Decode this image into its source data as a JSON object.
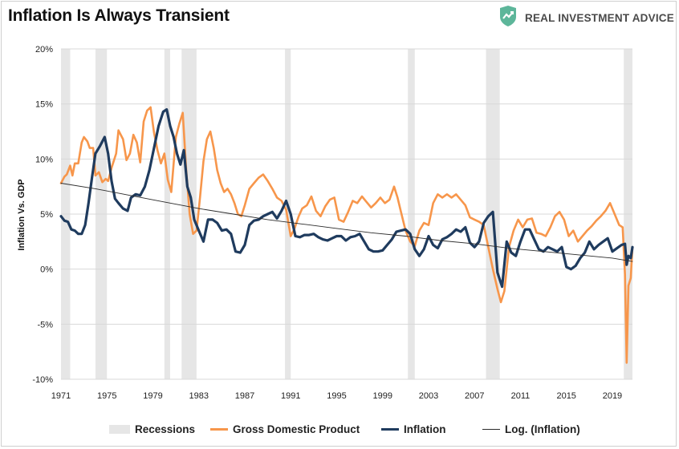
{
  "header": {
    "title": "Inflation Is Always Transient",
    "brand": "REAL INVESTMENT ADVICE"
  },
  "colors": {
    "gdp": "#F7964B",
    "inflation": "#1F3B5E",
    "recession": "#E6E6E6",
    "trend": "#2b2b2b",
    "grid": "#D9D9D9",
    "brand_icon": "#5DB69A"
  },
  "chart_data": {
    "type": "line",
    "ylabel": "Inflation Vs. GDP",
    "ylim": [
      -10,
      20
    ],
    "xlim": [
      1971,
      2020.75
    ],
    "yticks": [
      -10,
      -5,
      0,
      5,
      10,
      15,
      20
    ],
    "ytick_labels": [
      "-10%",
      "-5%",
      "0%",
      "5%",
      "10%",
      "15%",
      "20%"
    ],
    "xticks": [
      1971,
      1975,
      1979,
      1983,
      1987,
      1991,
      1995,
      1999,
      2003,
      2007,
      2011,
      2015,
      2019
    ],
    "grid": "horizontal",
    "legend_position": "bottom",
    "recessions": [
      [
        1971.0,
        1971.8
      ],
      [
        1974.0,
        1975.0
      ],
      [
        1980.0,
        1980.5
      ],
      [
        1981.5,
        1982.8
      ],
      [
        1990.5,
        1991.0
      ],
      [
        2001.2,
        2001.8
      ],
      [
        2008.0,
        2009.2
      ],
      [
        2020.0,
        2020.75
      ]
    ],
    "series": [
      {
        "name": "Gross Domestic Product",
        "x": [
          1971.0,
          1971.3,
          1971.5,
          1971.8,
          1972.0,
          1972.2,
          1972.5,
          1972.8,
          1973.0,
          1973.3,
          1973.5,
          1973.8,
          1974.0,
          1974.3,
          1974.6,
          1974.9,
          1975.1,
          1975.4,
          1975.8,
          1976.0,
          1976.4,
          1976.7,
          1977.0,
          1977.3,
          1977.6,
          1977.9,
          1978.2,
          1978.5,
          1978.8,
          1979.1,
          1979.4,
          1979.7,
          1980.0,
          1980.3,
          1980.6,
          1981.0,
          1981.3,
          1981.6,
          1981.9,
          1982.2,
          1982.5,
          1982.8,
          1983.1,
          1983.4,
          1983.7,
          1984.0,
          1984.3,
          1984.6,
          1984.9,
          1985.2,
          1985.5,
          1985.8,
          1986.1,
          1986.4,
          1986.7,
          1987.0,
          1987.4,
          1987.8,
          1988.2,
          1988.6,
          1989.0,
          1989.4,
          1989.8,
          1990.2,
          1990.6,
          1991.0,
          1991.3,
          1991.7,
          1992.0,
          1992.4,
          1992.8,
          1993.2,
          1993.6,
          1994.0,
          1994.4,
          1994.8,
          1995.2,
          1995.6,
          1996.0,
          1996.4,
          1996.8,
          1997.2,
          1997.6,
          1998.0,
          1998.4,
          1998.8,
          1999.2,
          1999.6,
          2000.0,
          2000.3,
          2000.6,
          2001.0,
          2001.4,
          2001.8,
          2002.2,
          2002.6,
          2003.0,
          2003.4,
          2003.8,
          2004.2,
          2004.6,
          2005.0,
          2005.4,
          2005.8,
          2006.2,
          2006.6,
          2007.0,
          2007.4,
          2007.8,
          2008.2,
          2008.6,
          2009.0,
          2009.3,
          2009.6,
          2010.0,
          2010.4,
          2010.8,
          2011.2,
          2011.6,
          2012.0,
          2012.4,
          2012.8,
          2013.2,
          2013.6,
          2014.0,
          2014.4,
          2014.8,
          2015.2,
          2015.6,
          2016.0,
          2016.4,
          2016.8,
          2017.2,
          2017.6,
          2018.0,
          2018.4,
          2018.8,
          2019.2,
          2019.6,
          2019.9,
          2020.1,
          2020.25,
          2020.4,
          2020.6,
          2020.75
        ],
        "values": [
          7.8,
          8.4,
          8.6,
          9.4,
          8.5,
          9.6,
          9.6,
          11.5,
          12.0,
          11.6,
          11.0,
          11.0,
          8.5,
          8.8,
          7.9,
          8.2,
          8.0,
          9.2,
          10.5,
          12.6,
          11.8,
          9.9,
          10.5,
          12.2,
          11.5,
          9.7,
          13.4,
          14.4,
          14.7,
          12.4,
          10.8,
          9.6,
          10.5,
          8.1,
          7.0,
          12.0,
          13.2,
          14.2,
          9.0,
          5.0,
          3.2,
          3.5,
          6.5,
          9.8,
          11.8,
          12.5,
          11.0,
          9.0,
          7.8,
          7.0,
          7.3,
          6.8,
          6.0,
          5.0,
          4.8,
          5.8,
          7.3,
          7.8,
          8.3,
          8.6,
          8.0,
          7.3,
          6.5,
          6.2,
          5.4,
          3.0,
          3.6,
          4.8,
          5.5,
          5.8,
          6.6,
          5.3,
          4.8,
          5.7,
          6.3,
          6.5,
          4.5,
          4.3,
          5.2,
          6.2,
          6.0,
          6.6,
          6.1,
          5.6,
          6.0,
          6.5,
          6.0,
          6.3,
          7.5,
          6.5,
          5.2,
          3.5,
          2.5,
          2.1,
          3.5,
          4.2,
          4.0,
          6.0,
          6.8,
          6.5,
          6.8,
          6.5,
          6.8,
          6.3,
          5.8,
          4.7,
          4.5,
          4.3,
          4.0,
          2.0,
          0.0,
          -1.8,
          -3.0,
          -2.0,
          2.0,
          3.5,
          4.5,
          3.8,
          4.5,
          4.6,
          3.3,
          3.2,
          3.0,
          3.8,
          4.8,
          5.2,
          4.5,
          3.0,
          3.5,
          2.5,
          3.0,
          3.5,
          3.9,
          4.4,
          4.8,
          5.3,
          6.0,
          5.0,
          4.0,
          3.8,
          -0.5,
          -8.5,
          -1.5,
          -0.8,
          2.0
        ]
      },
      {
        "name": "Inflation",
        "x": [
          1971.0,
          1971.3,
          1971.6,
          1971.9,
          1972.2,
          1972.5,
          1972.8,
          1973.1,
          1973.4,
          1973.7,
          1974.0,
          1974.4,
          1974.8,
          1975.1,
          1975.4,
          1975.7,
          1976.0,
          1976.4,
          1976.8,
          1977.1,
          1977.5,
          1977.9,
          1978.3,
          1978.7,
          1979.1,
          1979.5,
          1979.9,
          1980.2,
          1980.5,
          1980.8,
          1981.1,
          1981.4,
          1981.7,
          1982.0,
          1982.3,
          1982.6,
          1983.0,
          1983.4,
          1983.8,
          1984.2,
          1984.6,
          1985.0,
          1985.4,
          1985.8,
          1986.2,
          1986.6,
          1987.0,
          1987.4,
          1987.8,
          1988.2,
          1988.6,
          1989.0,
          1989.4,
          1989.8,
          1990.2,
          1990.6,
          1991.0,
          1991.4,
          1991.8,
          1992.2,
          1992.6,
          1993.0,
          1993.4,
          1993.8,
          1994.2,
          1994.6,
          1995.0,
          1995.4,
          1995.8,
          1996.2,
          1996.6,
          1997.0,
          1997.4,
          1997.8,
          1998.2,
          1998.6,
          1999.0,
          1999.4,
          1999.8,
          2000.2,
          2000.6,
          2001.0,
          2001.4,
          2001.8,
          2002.2,
          2002.6,
          2003.0,
          2003.4,
          2003.8,
          2004.2,
          2004.6,
          2005.0,
          2005.4,
          2005.8,
          2006.2,
          2006.6,
          2007.0,
          2007.4,
          2007.8,
          2008.2,
          2008.6,
          2009.0,
          2009.4,
          2009.8,
          2010.2,
          2010.6,
          2011.0,
          2011.4,
          2011.8,
          2012.2,
          2012.6,
          2013.0,
          2013.4,
          2013.8,
          2014.2,
          2014.6,
          2015.0,
          2015.4,
          2015.8,
          2016.2,
          2016.6,
          2017.0,
          2017.4,
          2017.8,
          2018.2,
          2018.6,
          2019.0,
          2019.4,
          2019.8,
          2020.1,
          2020.25,
          2020.4,
          2020.6,
          2020.75
        ],
        "values": [
          4.8,
          4.4,
          4.3,
          3.6,
          3.5,
          3.2,
          3.2,
          4.0,
          6.0,
          8.3,
          10.5,
          11.2,
          12.0,
          10.5,
          8.0,
          6.4,
          6.0,
          5.5,
          5.3,
          6.5,
          6.8,
          6.7,
          7.5,
          9.0,
          11.0,
          13.0,
          14.3,
          14.5,
          13.0,
          12.0,
          10.5,
          9.5,
          10.8,
          7.5,
          6.5,
          4.5,
          3.5,
          2.5,
          4.5,
          4.5,
          4.2,
          3.5,
          3.6,
          3.2,
          1.6,
          1.5,
          2.2,
          4.0,
          4.4,
          4.5,
          4.8,
          5.0,
          5.2,
          4.6,
          5.3,
          6.2,
          5.0,
          3.0,
          2.9,
          3.1,
          3.1,
          3.2,
          2.9,
          2.7,
          2.6,
          2.8,
          3.0,
          3.0,
          2.6,
          2.9,
          3.0,
          3.2,
          2.5,
          1.8,
          1.6,
          1.6,
          1.7,
          2.2,
          2.7,
          3.4,
          3.5,
          3.6,
          3.2,
          1.8,
          1.2,
          1.8,
          3.0,
          2.2,
          1.9,
          2.7,
          2.9,
          3.2,
          3.6,
          3.4,
          3.8,
          2.4,
          2.0,
          2.5,
          4.2,
          4.8,
          5.2,
          -0.3,
          -1.6,
          2.5,
          1.5,
          1.2,
          2.5,
          3.6,
          3.6,
          2.7,
          1.8,
          1.6,
          2.0,
          1.8,
          1.6,
          2.0,
          0.2,
          0.0,
          0.3,
          1.0,
          1.5,
          2.5,
          1.8,
          2.2,
          2.5,
          2.8,
          1.6,
          1.9,
          2.2,
          2.3,
          0.4,
          1.2,
          1.0,
          2.0
        ]
      },
      {
        "name": "Log. (Inflation)",
        "x": [
          1971.0,
          1974.0,
          1977.0,
          1980.0,
          1983.0,
          1986.0,
          1989.0,
          1992.0,
          1995.0,
          1998.0,
          2001.0,
          2004.0,
          2007.0,
          2010.0,
          2013.0,
          2016.0,
          2019.0,
          2020.75
        ],
        "values": [
          7.8,
          7.3,
          6.7,
          6.1,
          5.5,
          5.0,
          4.5,
          4.1,
          3.7,
          3.3,
          3.0,
          2.6,
          2.3,
          1.9,
          1.6,
          1.3,
          1.0,
          0.7
        ]
      }
    ]
  },
  "legend": [
    {
      "label": "Recessions",
      "color": "#E6E6E6",
      "type": "box"
    },
    {
      "label": "Gross Domestic Product",
      "color": "#F7964B",
      "type": "thick-line"
    },
    {
      "label": "Inflation",
      "color": "#1F3B5E",
      "type": "thick-line"
    },
    {
      "label": "Log. (Inflation)",
      "color": "#2b2b2b",
      "type": "thin-line"
    }
  ]
}
